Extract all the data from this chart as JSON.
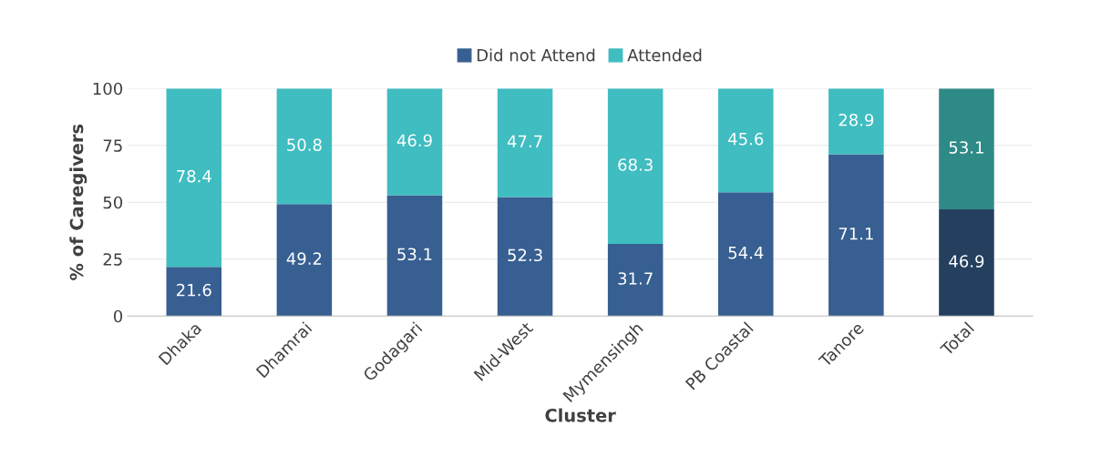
{
  "chart_data": {
    "type": "bar",
    "stacked": true,
    "xlabel": "Cluster",
    "ylabel": "% of Caregivers",
    "categories": [
      "Dhaka",
      "Dhamrai",
      "Godagari",
      "Mid-West",
      "Mymensingh",
      "PB Coastal",
      "Tanore",
      "Total"
    ],
    "series": [
      {
        "name": "Did not Attend",
        "color": "#375f91",
        "colors": [
          "#375f91",
          "#375f91",
          "#375f91",
          "#375f91",
          "#375f91",
          "#375f91",
          "#375f91",
          "#253f5f"
        ],
        "values": [
          21.6,
          49.2,
          53.1,
          52.3,
          31.7,
          54.4,
          71.1,
          46.9
        ]
      },
      {
        "name": "Attended",
        "color": "#3fbdc1",
        "colors": [
          "#3fbdc1",
          "#3fbdc1",
          "#3fbdc1",
          "#3fbdc1",
          "#3fbdc1",
          "#3fbdc1",
          "#3fbdc1",
          "#2e8a87"
        ],
        "values": [
          78.4,
          50.8,
          46.9,
          47.7,
          68.3,
          45.6,
          28.9,
          53.1
        ]
      }
    ],
    "ylim": [
      0,
      100
    ],
    "yticks": [
      0,
      25,
      50,
      75,
      100
    ],
    "grid": "y",
    "legend": "top",
    "data_labels": true
  }
}
